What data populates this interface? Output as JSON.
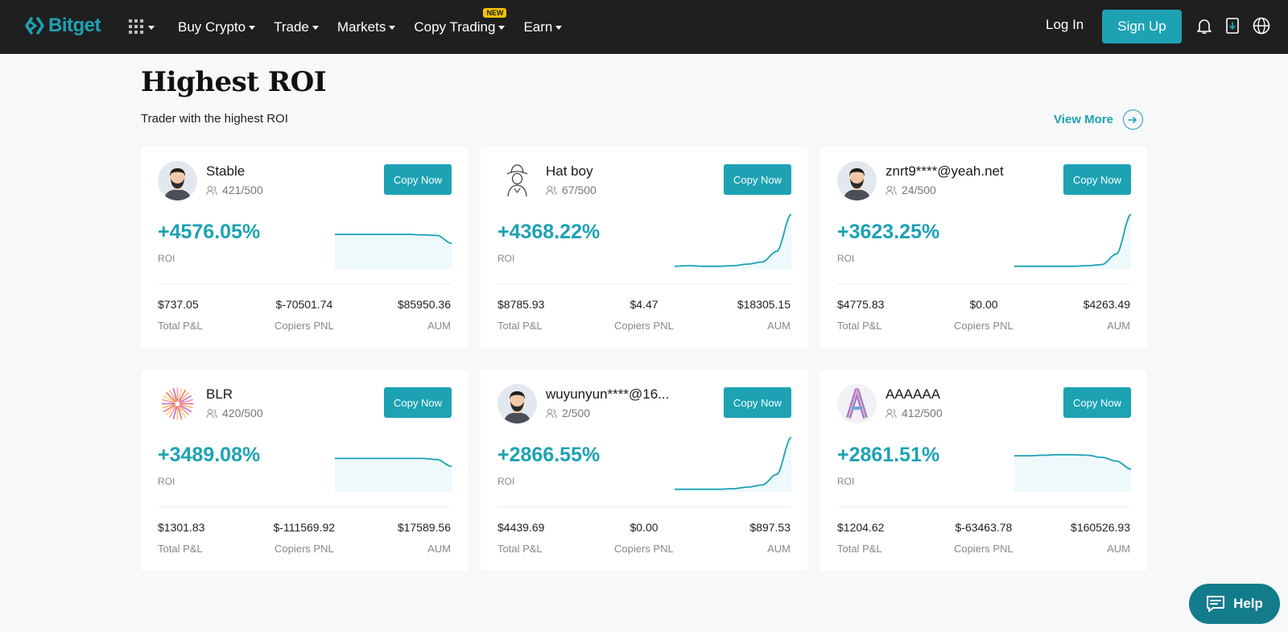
{
  "header": {
    "logo": "Bitget",
    "nav": [
      {
        "label": "Buy Crypto"
      },
      {
        "label": "Trade"
      },
      {
        "label": "Markets"
      },
      {
        "label": "Copy Trading",
        "badge": "NEW"
      },
      {
        "label": "Earn"
      }
    ],
    "login": "Log In",
    "signup": "Sign Up"
  },
  "section": {
    "title": "Highest ROI",
    "subtitle": "Trader with the highest ROI",
    "view_more": "View More"
  },
  "labels": {
    "copy_now": "Copy Now",
    "roi": "ROI",
    "total_pl": "Total P&L",
    "copiers_pnl": "Copiers PNL",
    "aum": "AUM"
  },
  "traders": [
    {
      "name": "Stable",
      "copiers": "421/500",
      "roi": "+4576.05%",
      "total_pl": "$737.05",
      "copiers_pnl": "$-70501.74",
      "aum": "$85950.36",
      "avatar": "bearded-man",
      "trend": [
        0.62,
        0.62,
        0.62,
        0.62,
        0.62,
        0.62,
        0.61,
        0.6,
        0.45
      ]
    },
    {
      "name": "Hat boy",
      "copiers": "67/500",
      "roi": "+4368.22%",
      "total_pl": "$8785.93",
      "copiers_pnl": "$4.47",
      "aum": "$18305.15",
      "avatar": "hat-sketch",
      "trend": [
        0.02,
        0.03,
        0.02,
        0.02,
        0.03,
        0.06,
        0.1,
        0.3,
        1.0
      ]
    },
    {
      "name": "znrt9****@yeah.net",
      "copiers": "24/500",
      "roi": "+3623.25%",
      "total_pl": "$4775.83",
      "copiers_pnl": "$0.00",
      "aum": "$4263.49",
      "avatar": "bearded-man",
      "trend": [
        0.02,
        0.02,
        0.02,
        0.02,
        0.02,
        0.03,
        0.05,
        0.25,
        1.0
      ]
    },
    {
      "name": "BLR",
      "copiers": "420/500",
      "roi": "+3489.08%",
      "total_pl": "$1301.83",
      "copiers_pnl": "$-111569.92",
      "aum": "$17589.56",
      "avatar": "firework",
      "trend": [
        0.6,
        0.6,
        0.6,
        0.6,
        0.6,
        0.6,
        0.6,
        0.58,
        0.45
      ]
    },
    {
      "name": "wuyunyun****@16...",
      "copiers": "2/500",
      "roi": "+2866.55%",
      "total_pl": "$4439.69",
      "copiers_pnl": "$0.00",
      "aum": "$897.53",
      "avatar": "bearded-man",
      "trend": [
        0.02,
        0.02,
        0.02,
        0.02,
        0.03,
        0.06,
        0.1,
        0.3,
        1.0
      ]
    },
    {
      "name": "AAAAAA",
      "copiers": "412/500",
      "roi": "+2861.51%",
      "total_pl": "$1204.62",
      "copiers_pnl": "$-63463.78",
      "aum": "$160526.93",
      "avatar": "letter-a",
      "trend": [
        0.65,
        0.65,
        0.66,
        0.67,
        0.67,
        0.66,
        0.62,
        0.55,
        0.4
      ]
    }
  ],
  "help": "Help",
  "colors": {
    "accent": "#1da2b4",
    "header_bg": "#1f1f1f",
    "page_bg": "#f7f8f8"
  }
}
